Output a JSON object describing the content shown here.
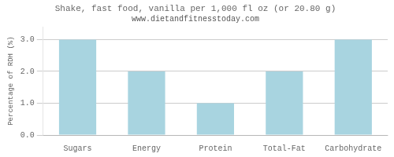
{
  "chart_data": {
    "type": "bar",
    "title": "Shake, fast food, vanilla per 1,000 fl oz (or 20.80 g)",
    "subtitle": "www.dietandfitnesstoday.com",
    "categories": [
      "Sugars",
      "Energy",
      "Protein",
      "Total-Fat",
      "Carbohydrate"
    ],
    "values": [
      3.0,
      2.0,
      1.0,
      2.0,
      3.0
    ],
    "color": "#a8d4e0",
    "ylabel": "Percentage of RDH (%)",
    "ylim": [
      0.0,
      3.4
    ],
    "yticks": [
      {
        "value": 0.0,
        "label": "0.0"
      },
      {
        "value": 1.0,
        "label": "1.0"
      },
      {
        "value": 2.0,
        "label": "2.0"
      },
      {
        "value": 3.0,
        "label": "3.0"
      }
    ],
    "grid": true
  }
}
